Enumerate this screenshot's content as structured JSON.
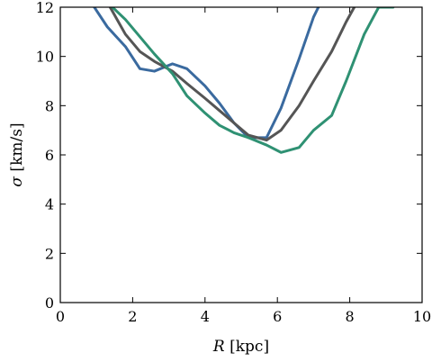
{
  "chart_data": {
    "type": "line",
    "xlabel_var": "R",
    "xlabel_unit": "[kpc]",
    "ylabel_var": "σ",
    "ylabel_unit": "[km/s]",
    "xlim": [
      0,
      10
    ],
    "ylim": [
      0,
      12
    ],
    "xticks": [
      0,
      2,
      4,
      6,
      8,
      10
    ],
    "yticks": [
      0,
      2,
      4,
      6,
      8,
      10,
      12
    ],
    "grid": false,
    "legend": "none",
    "series": [
      {
        "color": "#3a6a9f",
        "x": [
          0.85,
          1.3,
          1.8,
          2.2,
          2.6,
          3.1,
          3.5,
          4.0,
          4.4,
          4.8,
          5.2,
          5.7,
          6.1,
          6.6,
          7.0,
          7.2
        ],
        "y": [
          12.2,
          11.2,
          10.4,
          9.5,
          9.4,
          9.7,
          9.5,
          8.8,
          8.1,
          7.3,
          6.7,
          6.7,
          7.9,
          9.9,
          11.6,
          12.2
        ]
      },
      {
        "color": "#555555",
        "x": [
          1.3,
          1.8,
          2.2,
          2.6,
          3.1,
          3.5,
          4.0,
          4.4,
          4.8,
          5.2,
          5.7,
          6.1,
          6.6,
          7.0,
          7.5,
          7.9,
          8.2
        ],
        "y": [
          12.2,
          10.9,
          10.2,
          9.8,
          9.4,
          8.9,
          8.3,
          7.8,
          7.3,
          6.8,
          6.6,
          7.0,
          8.0,
          9.0,
          10.2,
          11.4,
          12.2
        ]
      },
      {
        "color": "#2f9173",
        "x": [
          1.3,
          1.8,
          2.2,
          2.6,
          3.1,
          3.5,
          4.0,
          4.4,
          4.8,
          5.2,
          5.7,
          6.1,
          6.6,
          7.0,
          7.5,
          7.9,
          8.4,
          8.8,
          9.2
        ],
        "y": [
          12.2,
          11.5,
          10.8,
          10.1,
          9.3,
          8.4,
          7.7,
          7.2,
          6.9,
          6.7,
          6.4,
          6.1,
          6.3,
          7.0,
          7.6,
          9.0,
          10.9,
          12.0,
          12.0
        ]
      }
    ]
  }
}
